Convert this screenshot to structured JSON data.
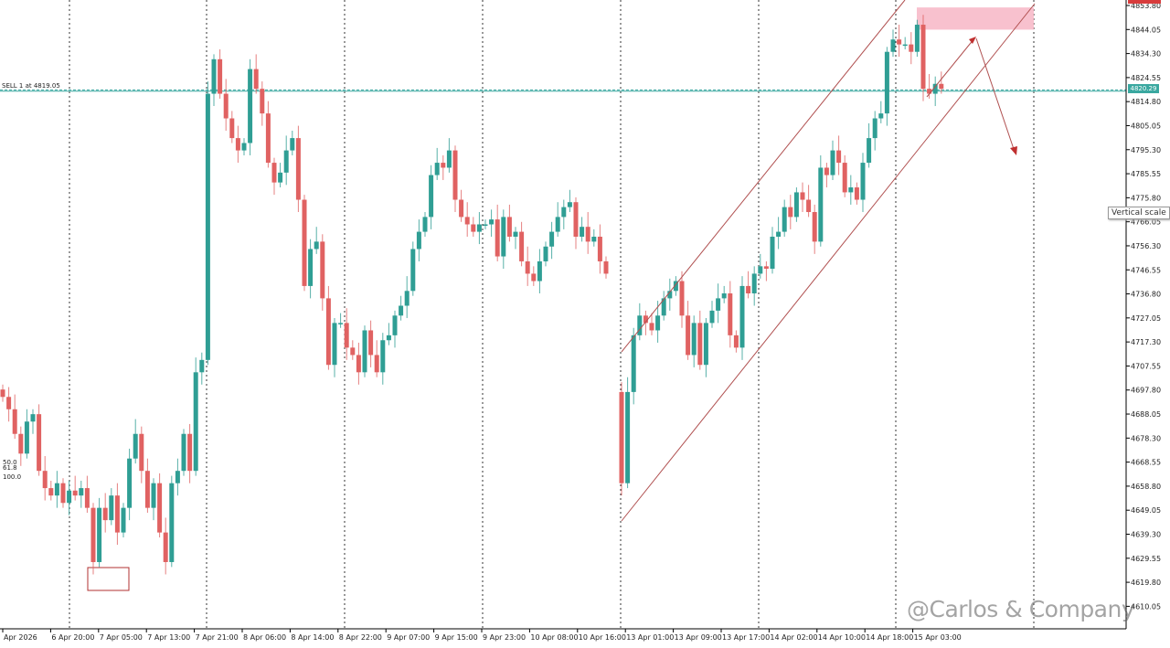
{
  "chart_data": {
    "type": "candlestick",
    "title": "",
    "colors": {
      "bull": "#2f9e94",
      "bear": "#e06262",
      "channel": "#b05050",
      "sell_line": "#3aa8a0",
      "zone": "#f7b6c6"
    },
    "y_ticks": [
      "4853.80",
      "4844.05",
      "4834.30",
      "4824.55",
      "4814.80",
      "4805.05",
      "4795.30",
      "4785.55",
      "4775.80",
      "4766.05",
      "4756.30",
      "4746.55",
      "4736.80",
      "4727.05",
      "4717.30",
      "4707.55",
      "4697.80",
      "4688.05",
      "4678.30",
      "4668.55",
      "4658.80",
      "4649.05",
      "4639.30",
      "4629.55",
      "4619.80",
      "4610.05"
    ],
    "ylim": [
      4605,
      4856
    ],
    "x_ticks": [
      "Apr 2026",
      "6 Apr 20:00",
      "7 Apr 05:00",
      "7 Apr 13:00",
      "7 Apr 21:00",
      "8 Apr 06:00",
      "8 Apr 14:00",
      "8 Apr 22:00",
      "9 Apr 07:00",
      "9 Apr 15:00",
      "9 Apr 23:00",
      "10 Apr 08:00",
      "10 Apr 16:00",
      "13 Apr 01:00",
      "13 Apr 09:00",
      "13 Apr 17:00",
      "14 Apr 02:00",
      "14 Apr 10:00",
      "14 Apr 18:00",
      "15 Apr 03:00"
    ],
    "close": [
      4695,
      4690,
      4680,
      4672,
      4685,
      4688,
      4665,
      4658,
      4655,
      4660,
      4652,
      4657,
      4655,
      4658,
      4650,
      4628,
      4650,
      4645,
      4655,
      4640,
      4650,
      4670,
      4680,
      4665,
      4650,
      4660,
      4640,
      4628,
      4660,
      4665,
      4680,
      4665,
      4705,
      4710,
      4818,
      4832,
      4818,
      4808,
      4800,
      4795,
      4798,
      4828,
      4820,
      4810,
      4790,
      4782,
      4786,
      4795,
      4800,
      4775,
      4740,
      4755,
      4758,
      4735,
      4708,
      4725,
      4725,
      4715,
      4712,
      4705,
      4722,
      4712,
      4705,
      4718,
      4720,
      4728,
      4732,
      4738,
      4755,
      4762,
      4768,
      4785,
      4790,
      4788,
      4795,
      4775,
      4768,
      4765,
      4762,
      4765,
      4765,
      4767,
      4752,
      4768,
      4760,
      4762,
      4750,
      4745,
      4742,
      4750,
      4756,
      4762,
      4768,
      4772,
      4774,
      4760,
      4764,
      4758,
      4760,
      4750,
      4745,
      4660,
      4697,
      4720,
      4728,
      4725,
      4722,
      4728,
      4735,
      4738,
      4742,
      4728,
      4712,
      4725,
      4708,
      4725,
      4730,
      4735,
      4737,
      4720,
      4715,
      4740,
      4737,
      4745,
      4748,
      4747,
      4760,
      4762,
      4772,
      4768,
      4778,
      4775,
      4770,
      4758,
      4788,
      4785,
      4795,
      4790,
      4778,
      4780,
      4775,
      4790,
      4800,
      4808,
      4810,
      4835,
      4840,
      4838,
      4838,
      4835,
      4846,
      4820,
      4818,
      4822,
      4820
    ],
    "gap_open": 4697,
    "sell_order": {
      "label": "SELL 1 at 4819.05",
      "price": 4819.05
    },
    "current_price": {
      "label": "4820.29",
      "price": 4820.29
    },
    "fib_labels": [
      "50.0",
      "61.8",
      "100.0"
    ],
    "supply_zone": {
      "from_price": 4844,
      "to_price": 4853
    },
    "tooltip": "Vertical scale"
  },
  "watermark": "@Carlos & Company"
}
